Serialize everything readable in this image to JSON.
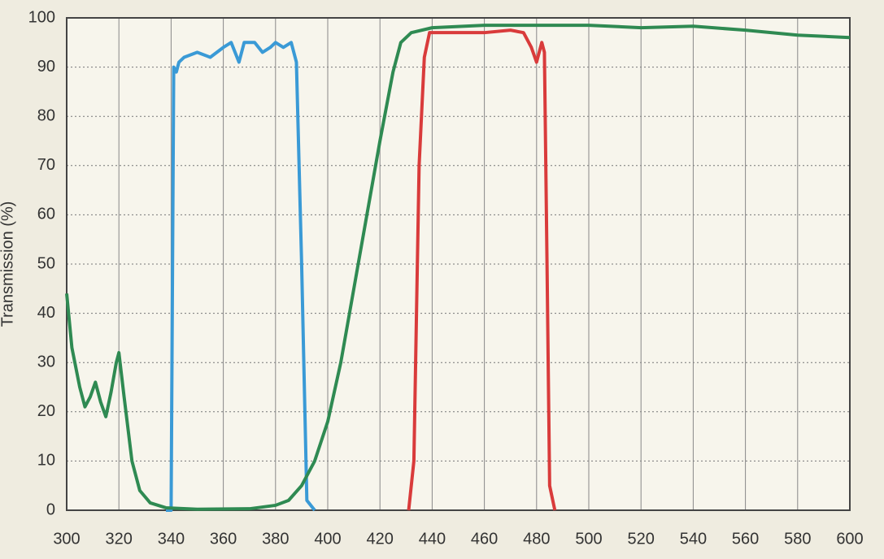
{
  "chart_data": {
    "type": "line",
    "ylabel": "Transmission (%)",
    "xlim": [
      300,
      600
    ],
    "xticks": [
      300,
      320,
      340,
      360,
      380,
      400,
      420,
      440,
      460,
      480,
      500,
      520,
      540,
      560,
      580,
      600
    ],
    "ylim": [
      0,
      100
    ],
    "yticks": [
      0,
      10,
      20,
      30,
      40,
      50,
      60,
      70,
      80,
      90,
      100
    ],
    "grid": true,
    "series": [
      {
        "color": "#3a9ad6",
        "x": [
          338,
          340,
          341,
          342,
          343,
          345,
          350,
          355,
          360,
          363,
          366,
          368,
          372,
          375,
          378,
          380,
          383,
          386,
          388,
          390,
          392,
          395
        ],
        "values": [
          0,
          0,
          90,
          89,
          91,
          92,
          93,
          92,
          94,
          95,
          91,
          95,
          95,
          93,
          94,
          95,
          94,
          95,
          91,
          50,
          2,
          0
        ]
      },
      {
        "color": "#2f8a52",
        "x": [
          300,
          302,
          305,
          307,
          309,
          311,
          313,
          315,
          317,
          319,
          320,
          322,
          325,
          328,
          332,
          338,
          350,
          370,
          380,
          385,
          390,
          395,
          400,
          405,
          410,
          415,
          420,
          425,
          428,
          432,
          440,
          460,
          480,
          500,
          520,
          540,
          560,
          580,
          600
        ],
        "values": [
          44,
          33,
          25,
          21,
          23,
          26,
          22,
          19,
          24,
          30,
          32,
          23,
          10,
          4,
          1.5,
          0.5,
          0.2,
          0.3,
          1,
          2,
          5,
          10,
          18,
          30,
          45,
          60,
          75,
          89,
          95,
          97,
          98,
          98.5,
          98.5,
          98.5,
          98,
          98.3,
          97.5,
          96.5,
          96
        ]
      },
      {
        "color": "#d93b3b",
        "x": [
          431,
          433,
          435,
          437,
          439,
          445,
          460,
          470,
          475,
          478,
          480,
          482,
          483,
          484,
          485,
          487
        ],
        "values": [
          0,
          10,
          70,
          92,
          97,
          97,
          97,
          97.5,
          97,
          94,
          91,
          95,
          93,
          50,
          5,
          0
        ]
      }
    ]
  }
}
